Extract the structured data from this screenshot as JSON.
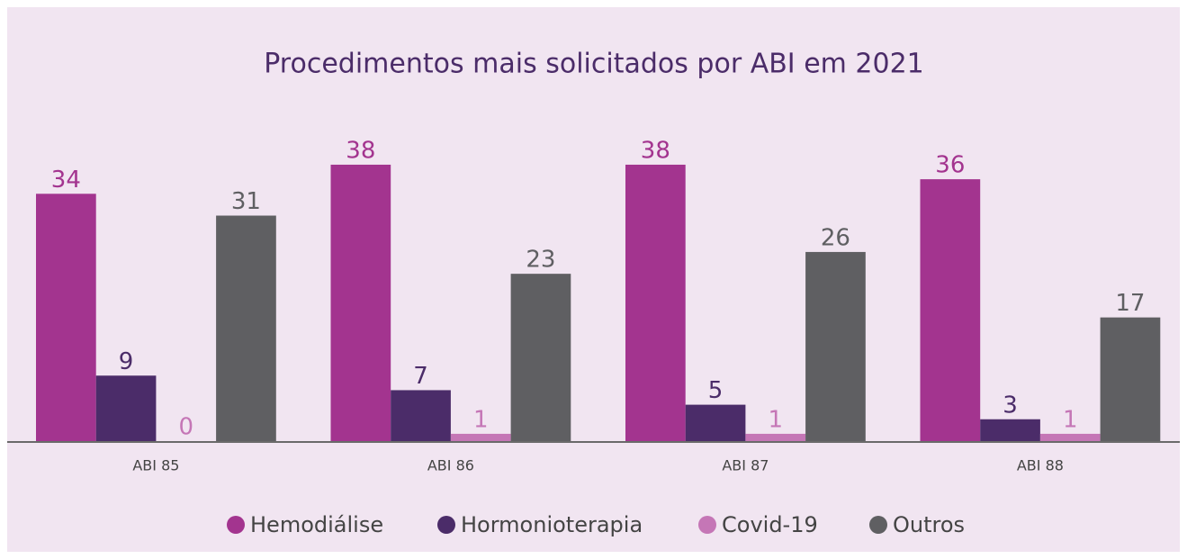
{
  "chart_data": {
    "type": "bar",
    "title": "Procedimentos mais solicitados por ABI em 2021",
    "categories": [
      "ABI 85",
      "ABI 86",
      "ABI 87",
      "ABI 88"
    ],
    "series": [
      {
        "name": "Hemodiálise",
        "color": "#a3348f",
        "values": [
          34,
          38,
          38,
          36
        ]
      },
      {
        "name": "Hormonioterapia",
        "color": "#4b2c69",
        "values": [
          9,
          7,
          5,
          3
        ]
      },
      {
        "name": "Covid-19",
        "color": "#c576b6",
        "values": [
          0,
          1,
          1,
          1
        ]
      },
      {
        "name": "Outros",
        "color": "#5f5f62",
        "values": [
          31,
          23,
          26,
          17
        ]
      }
    ]
  }
}
